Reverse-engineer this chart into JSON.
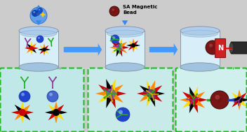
{
  "bg_color": "#cccccc",
  "beaker_fill": "#d8eef8",
  "beaker_edge": "#8899aa",
  "water_color": "#c0ddf0",
  "water_surface": "#b0ccee",
  "droplet_fill": "#5599ee",
  "droplet_edge": "#3377cc",
  "arrow_h_color": "#4499ff",
  "arrow_v_color": "#3388ee",
  "magnet_red": "#cc2222",
  "magnet_n_text": "N",
  "magnet_text_color": "#ffffff",
  "bead_color": "#7a1515",
  "bead_highlight": "#cc4444",
  "zoom_box1_bg": "#c0e8e8",
  "zoom_box2_bg": "#c8eae8",
  "zoom_box3_bg": "#d0f0ee",
  "zoom_border": "#22bb22",
  "label_sa": "SA Magnetic\nBead",
  "label_n": "N",
  "spike_colors_1": [
    "#cc0000",
    "#ff8800",
    "#ffdd00",
    "#000000",
    "#cc0000",
    "#ff8800",
    "#ffdd00",
    "#000000"
  ],
  "spike_colors_2": [
    "#000000",
    "#cc0000",
    "#ff8800",
    "#ffdd00",
    "#000000",
    "#cc0000",
    "#ff8800",
    "#ffdd00"
  ],
  "antibody_green": "#22aa22",
  "antibody_purple": "#883399",
  "antibody_yellow": "#ccaa00",
  "sphere_blue": "#2244cc",
  "sphere_blue2": "#3355dd",
  "fiber_color": "#333333",
  "laser_color": "#cc0000",
  "laser_color2": "#ff2222"
}
